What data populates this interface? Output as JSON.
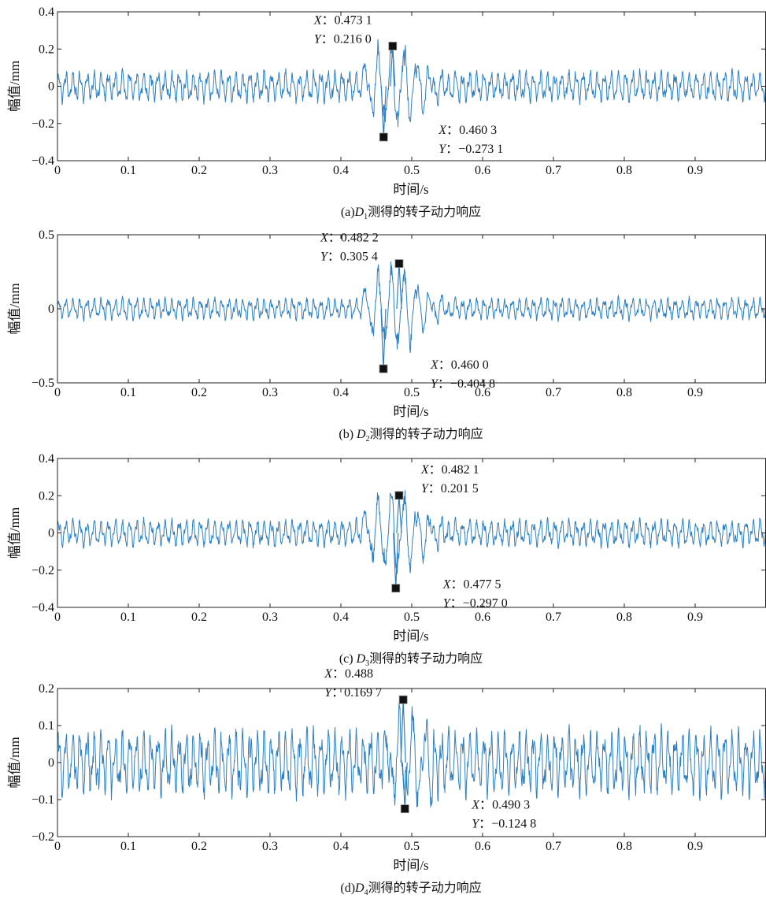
{
  "figure": {
    "line_color": "#2f7fc1",
    "marker_color": "#111111",
    "text_color": "#111111"
  },
  "chart_data": [
    {
      "type": "line",
      "caption_prefix": "(a)",
      "caption_var": "D",
      "caption_sub": "1",
      "caption_suffix": "测得的转子动力响应",
      "xlabel": "时间/s",
      "ylabel": "幅值/mm",
      "xlim": [
        0,
        1.0
      ],
      "ylim": [
        -0.4,
        0.4
      ],
      "xticks": [
        0,
        0.1,
        0.2,
        0.3,
        0.4,
        0.5,
        0.6,
        0.7,
        0.8,
        0.9
      ],
      "xtick_labels": [
        "0",
        "0.1",
        "0.2",
        "0.3",
        "0.4",
        "0.5",
        "0.6",
        "0.7",
        "0.8",
        "0.9"
      ],
      "yticks": [
        -0.4,
        -0.2,
        0,
        0.2,
        0.4
      ],
      "ytick_labels": [
        "−0.4",
        "−0.2",
        "0",
        "0.2",
        "0.4"
      ],
      "baseline_amplitude": 0.08,
      "event_window": [
        0.43,
        0.6
      ],
      "markers": [
        {
          "x": 0.4731,
          "y": 0.216,
          "x_label": "X",
          "x_text": "0.473 1",
          "y_label": "Y",
          "y_text": "0.216 0",
          "label_position": "above-left"
        },
        {
          "x": 0.4603,
          "y": -0.2731,
          "x_label": "X",
          "x_text": "0.460 3",
          "y_label": "Y",
          "y_text": "−0.273 1",
          "label_position": "below-right"
        }
      ]
    },
    {
      "type": "line",
      "caption_prefix": "(b) ",
      "caption_var": "D",
      "caption_sub": "2",
      "caption_suffix": "测得的转子动力响应",
      "xlabel": "时间/s",
      "ylabel": "幅值/mm",
      "xlim": [
        0,
        1.0
      ],
      "ylim": [
        -0.5,
        0.5
      ],
      "xticks": [
        0,
        0.1,
        0.2,
        0.3,
        0.4,
        0.5,
        0.6,
        0.7,
        0.8,
        0.9
      ],
      "xtick_labels": [
        "0",
        "0.1",
        "0.2",
        "0.3",
        "0.4",
        "0.5",
        "0.6",
        "0.7",
        "0.8",
        "0.9"
      ],
      "yticks": [
        -0.5,
        0,
        0.5
      ],
      "ytick_labels": [
        "−0.5",
        "0",
        "0.5"
      ],
      "baseline_amplitude": 0.07,
      "event_window": [
        0.43,
        0.6
      ],
      "markers": [
        {
          "x": 0.4822,
          "y": 0.3054,
          "x_label": "X",
          "x_text": "0.482 2",
          "y_label": "Y",
          "y_text": "0.305 4",
          "label_position": "above-left"
        },
        {
          "x": 0.46,
          "y": -0.4048,
          "x_label": "X",
          "x_text": "0.460 0",
          "y_label": "Y",
          "y_text": "−0.404 8",
          "label_position": "below-right"
        }
      ]
    },
    {
      "type": "line",
      "caption_prefix": "(c) ",
      "caption_var": "D",
      "caption_sub": "3",
      "caption_suffix": "测得的转子动力响应",
      "xlabel": "时间/s",
      "ylabel": "幅值/mm",
      "xlim": [
        0,
        1.0
      ],
      "ylim": [
        -0.4,
        0.4
      ],
      "xticks": [
        0,
        0.1,
        0.2,
        0.3,
        0.4,
        0.5,
        0.6,
        0.7,
        0.8,
        0.9
      ],
      "xtick_labels": [
        "0",
        "0.1",
        "0.2",
        "0.3",
        "0.4",
        "0.5",
        "0.6",
        "0.7",
        "0.8",
        "0.9"
      ],
      "yticks": [
        -0.4,
        -0.2,
        0,
        0.2,
        0.4
      ],
      "ytick_labels": [
        "−0.4",
        "−0.2",
        "0",
        "0.2",
        "0.4"
      ],
      "baseline_amplitude": 0.07,
      "event_window": [
        0.43,
        0.6
      ],
      "markers": [
        {
          "x": 0.4821,
          "y": 0.2015,
          "x_label": "X",
          "x_text": "0.482 1",
          "y_label": "Y",
          "y_text": "0.201 5",
          "label_position": "above-right"
        },
        {
          "x": 0.4775,
          "y": -0.297,
          "x_label": "X",
          "x_text": "0.477 5",
          "y_label": "Y",
          "y_text": "−0.297 0",
          "label_position": "below-right"
        }
      ]
    },
    {
      "type": "line",
      "caption_prefix": "(d)",
      "caption_var": "D",
      "caption_sub": "4",
      "caption_suffix": "测得的转子动力响应",
      "xlabel": "时间/s",
      "ylabel": "幅值/mm",
      "xlim": [
        0,
        1.0
      ],
      "ylim": [
        -0.2,
        0.2
      ],
      "xticks": [
        0,
        0.1,
        0.2,
        0.3,
        0.4,
        0.5,
        0.6,
        0.7,
        0.8,
        0.9
      ],
      "xtick_labels": [
        "0",
        "0.1",
        "0.2",
        "0.3",
        "0.4",
        "0.5",
        "0.6",
        "0.7",
        "0.8",
        "0.9"
      ],
      "yticks": [
        -0.2,
        -0.1,
        0,
        0.1,
        0.2
      ],
      "ytick_labels": [
        "−0.2",
        "−0.1",
        "0",
        "0.1",
        "0.2"
      ],
      "baseline_amplitude": 0.085,
      "event_window": [
        0.46,
        0.53
      ],
      "markers": [
        {
          "x": 0.488,
          "y": 0.1697,
          "x_label": "X",
          "x_text": "0.488",
          "y_label": "Y",
          "y_text": "0.169 7",
          "label_position": "above-left"
        },
        {
          "x": 0.4903,
          "y": -0.1248,
          "x_label": "X",
          "x_text": "0.490 3",
          "y_label": "Y",
          "y_text": "−0.124 8",
          "label_position": "below-right"
        }
      ]
    }
  ]
}
